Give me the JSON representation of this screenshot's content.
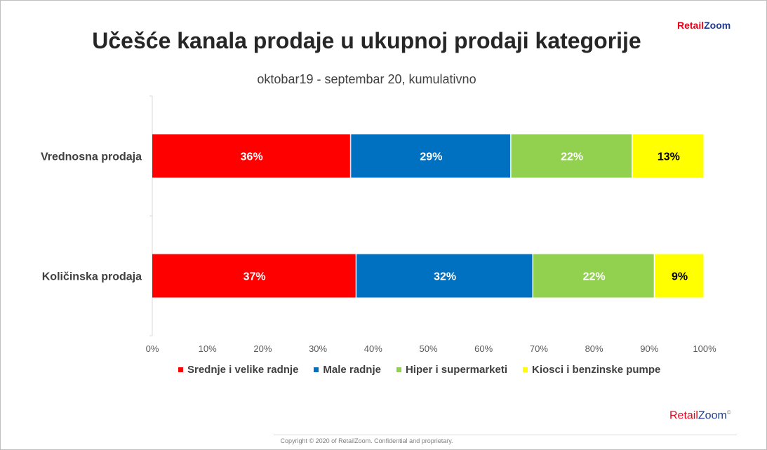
{
  "brand": {
    "retail": "Retail",
    "zoom": "Zoom",
    "mark": "©"
  },
  "title": "Učešće kanala prodaje u ukupnoj prodaji kategorije",
  "subtitle": "oktobar19 - septembar 20, kumulativno",
  "copyright": "Copyright © 2020 of RetailZoom. Confidential and proprietary.",
  "colors": {
    "red": "#ff0000",
    "blue": "#0070c0",
    "green": "#92d050",
    "yellow": "#ffff00"
  },
  "chart_data": {
    "type": "bar",
    "orientation": "horizontal",
    "stacked": true,
    "categories": [
      "Vrednosna prodaja",
      "Količinska prodaja"
    ],
    "series": [
      {
        "name": "Srednje i velike radnje",
        "values": [
          36,
          37
        ],
        "labels": [
          "36%",
          "37%"
        ],
        "color": "#ff0000",
        "label_color": "#ffffff"
      },
      {
        "name": "Male radnje",
        "values": [
          29,
          32
        ],
        "labels": [
          "29%",
          "32%"
        ],
        "color": "#0070c0",
        "label_color": "#ffffff"
      },
      {
        "name": "Hiper i supermarketi",
        "values": [
          22,
          22
        ],
        "labels": [
          "22%",
          "22%"
        ],
        "color": "#92d050",
        "label_color": "#ffffff"
      },
      {
        "name": "Kiosci i benzinske pumpe",
        "values": [
          13,
          9
        ],
        "labels": [
          "13%",
          "9%"
        ],
        "color": "#ffff00",
        "label_color": "#000000"
      }
    ],
    "xlim": [
      0,
      100
    ],
    "xticks": [
      "0%",
      "10%",
      "20%",
      "30%",
      "40%",
      "50%",
      "60%",
      "70%",
      "80%",
      "90%",
      "100%"
    ],
    "grid": false,
    "legend": "bottom"
  }
}
